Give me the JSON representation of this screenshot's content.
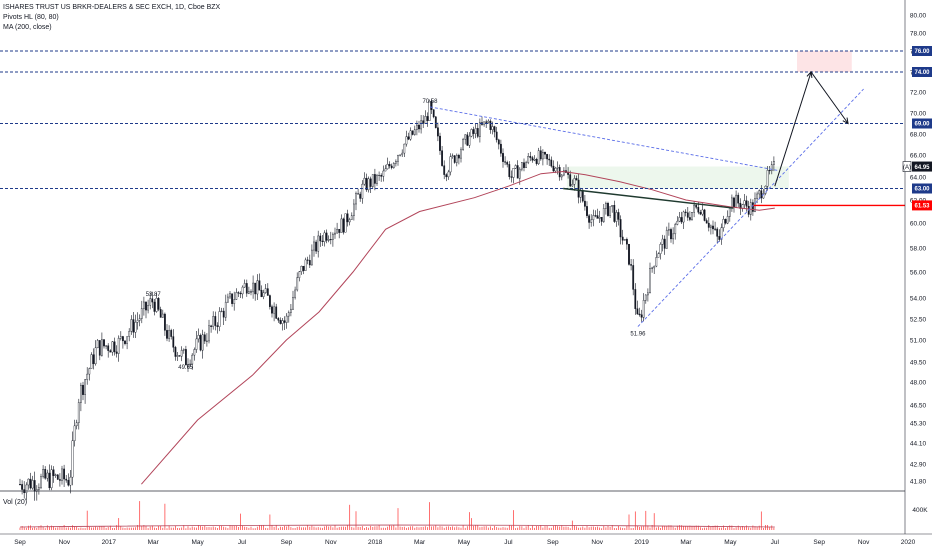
{
  "header": {
    "symbol_line": "ISHARES TRUST US BRKR-DEALERS & SEC EXCH, 1D, Cboe BZX",
    "indicator_1": "Pivots HL (80, 80)",
    "indicator_2": "MA (200, close)",
    "volume_label": "Vol (20)"
  },
  "colors": {
    "candle": "#131722",
    "ma": "#b2455a",
    "level_line": "#1e3a8a",
    "trend_line": "#5b6ee8",
    "support_line": "#ff0000",
    "target_zone": "#fde4e6",
    "consolidation_zone": "#e9f5e9",
    "neckline": "#1f3a2f",
    "volume_ma": "#b2455a"
  },
  "price_axis": {
    "ticks": [
      "80.00",
      "78.00",
      "76.00",
      "74.00",
      "72.00",
      "70.00",
      "68.00",
      "66.00",
      "64.00",
      "62.00",
      "60.00",
      "58.00",
      "56.00",
      "54.00",
      "52.50",
      "51.00",
      "49.50",
      "48.00",
      "46.50",
      "45.30",
      "44.10",
      "42.90",
      "41.80"
    ],
    "badges": [
      {
        "id": "level-76",
        "text": "76.00",
        "price": 76.0,
        "color": "#1e3a8a"
      },
      {
        "id": "level-74",
        "text": "74.00",
        "price": 74.0,
        "color": "#1e3a8a"
      },
      {
        "id": "level-69",
        "text": "69.00",
        "price": 69.0,
        "color": "#1e3a8a"
      },
      {
        "id": "last-price",
        "text": "64.95",
        "prefix": "(A)",
        "price": 64.95,
        "color": "#131722"
      },
      {
        "id": "level-63",
        "text": "63.00",
        "price": 63.0,
        "color": "#1e3a8a"
      },
      {
        "id": "level-61",
        "text": "61.53",
        "price": 61.53,
        "color": "#ff0000"
      }
    ]
  },
  "time_axis": {
    "ticks": [
      "Sep",
      "Nov",
      "2017",
      "Mar",
      "May",
      "Jul",
      "Sep",
      "Nov",
      "2018",
      "Mar",
      "May",
      "Jul",
      "Sep",
      "Nov",
      "2019",
      "Mar",
      "May",
      "Jul",
      "Sep",
      "Nov",
      "2020"
    ]
  },
  "volume_axis": {
    "label": "400K"
  },
  "chart_data": {
    "type": "candlestick",
    "title": "ISHARES TRUST US BRKR-DEALERS & SEC EXCH, 1D, Cboe BZX",
    "x": [
      "2016-09",
      "2016-11",
      "2017-01",
      "2017-03",
      "2017-05",
      "2017-07",
      "2017-09",
      "2017-11",
      "2018-01",
      "2018-03",
      "2018-05",
      "2018-07",
      "2018-09",
      "2018-11",
      "2019-01",
      "2019-03",
      "2019-05",
      "2019-07",
      "2019-09",
      "2019-11",
      "2020-01"
    ],
    "price_path": [
      [
        "2016-09-01",
        41.6
      ],
      [
        "2016-10-15",
        42.0
      ],
      [
        "2016-11-08",
        41.9
      ],
      [
        "2016-11-20",
        47.0
      ],
      [
        "2016-12-15",
        50.5
      ],
      [
        "2017-01-15",
        50.8
      ],
      [
        "2017-02-15",
        52.8
      ],
      [
        "2017-03-01",
        53.87
      ],
      [
        "2017-03-25",
        50.8
      ],
      [
        "2017-04-15",
        49.65
      ],
      [
        "2017-05-15",
        51.5
      ],
      [
        "2017-06-15",
        53.8
      ],
      [
        "2017-07-10",
        55.2
      ],
      [
        "2017-08-05",
        54.0
      ],
      [
        "2017-08-30",
        52.2
      ],
      [
        "2017-09-20",
        56.0
      ],
      [
        "2017-10-20",
        59.0
      ],
      [
        "2017-11-20",
        60.0
      ],
      [
        "2017-12-15",
        63.2
      ],
      [
        "2018-01-10",
        64.0
      ],
      [
        "2018-02-10",
        67.0
      ],
      [
        "2018-03-10",
        69.5
      ],
      [
        "2018-03-15",
        70.58
      ],
      [
        "2018-04-05",
        64.5
      ],
      [
        "2018-05-05",
        67.5
      ],
      [
        "2018-06-05",
        69.2
      ],
      [
        "2018-07-05",
        64.0
      ],
      [
        "2018-08-05",
        66.0
      ],
      [
        "2018-09-05",
        65.0
      ],
      [
        "2018-10-01",
        63.5
      ],
      [
        "2018-10-25",
        60.0
      ],
      [
        "2018-11-20",
        61.5
      ],
      [
        "2018-12-15",
        57.0
      ],
      [
        "2018-12-26",
        51.96
      ],
      [
        "2019-01-20",
        57.5
      ],
      [
        "2019-02-20",
        60.0
      ],
      [
        "2019-03-20",
        61.5
      ],
      [
        "2019-04-15",
        58.5
      ],
      [
        "2019-05-01",
        62.0
      ],
      [
        "2019-06-01",
        61.3
      ],
      [
        "2019-06-20",
        63.8
      ],
      [
        "2019-07-01",
        64.95
      ]
    ],
    "pivots": [
      {
        "date": "2017-03-01",
        "value": 53.87,
        "label": "53.87"
      },
      {
        "date": "2017-04-15",
        "value": 49.65,
        "label": "49.65"
      },
      {
        "date": "2018-03-15",
        "value": 70.58,
        "label": "70.58"
      },
      {
        "date": "2018-12-26",
        "value": 51.96,
        "label": "51.96"
      }
    ],
    "ma_200": [
      [
        "2017-02-15",
        41.6
      ],
      [
        "2017-05-01",
        45.5
      ],
      [
        "2017-07-15",
        48.5
      ],
      [
        "2017-09-01",
        51.0
      ],
      [
        "2017-10-15",
        53.0
      ],
      [
        "2017-12-01",
        56.0
      ],
      [
        "2018-01-15",
        59.5
      ],
      [
        "2018-03-01",
        61.0
      ],
      [
        "2018-05-15",
        62.2
      ],
      [
        "2018-07-01",
        63.2
      ],
      [
        "2018-08-15",
        64.3
      ],
      [
        "2018-09-15",
        64.5
      ],
      [
        "2018-10-15",
        64.2
      ],
      [
        "2018-12-01",
        63.6
      ],
      [
        "2019-01-15",
        62.9
      ],
      [
        "2019-03-01",
        62.0
      ],
      [
        "2019-05-01",
        61.4
      ],
      [
        "2019-06-10",
        61.1
      ],
      [
        "2019-07-01",
        61.3
      ]
    ],
    "horizontal_levels": [
      76.0,
      74.0,
      69.0,
      63.0,
      61.53
    ],
    "target_zone": {
      "from": "2019-08-01",
      "to": "2019-10-15",
      "low": 74.0,
      "high": 76.0
    },
    "projection_path": [
      [
        "2019-07-01",
        63.2
      ],
      [
        "2019-08-20",
        74.0
      ],
      [
        "2019-10-10",
        69.0
      ]
    ],
    "ylim": [
      41.0,
      81.0
    ],
    "volume_ylim": [
      0,
      600000
    ]
  }
}
